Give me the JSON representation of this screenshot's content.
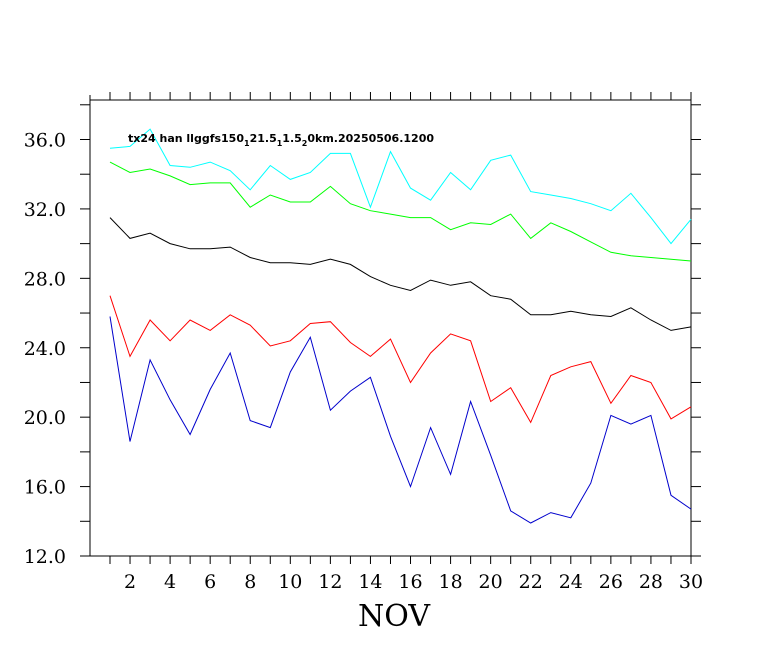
{
  "chart_data": {
    "type": "line",
    "title": {
      "parts": [
        {
          "text": "tx24 han llggfs150",
          "sub": false
        },
        {
          "text": "1",
          "sub": true
        },
        {
          "text": "21.5",
          "sub": false
        },
        {
          "text": "1",
          "sub": true
        },
        {
          "text": "1.5",
          "sub": false
        },
        {
          "text": "2",
          "sub": true
        },
        {
          "text": "0km.20250506.1200",
          "sub": false
        }
      ]
    },
    "xlabel": "NOV",
    "ylabel": "",
    "xlim": [
      0,
      30
    ],
    "ylim": [
      12,
      38
    ],
    "x_ticks": [
      2,
      4,
      6,
      8,
      10,
      12,
      14,
      16,
      18,
      20,
      22,
      24,
      26,
      28,
      30
    ],
    "x_tick_labels": [
      "2",
      "4",
      "6",
      "8",
      "10",
      "12",
      "14",
      "16",
      "18",
      "20",
      "22",
      "24",
      "26",
      "28",
      "30"
    ],
    "y_ticks": [
      12,
      16,
      20,
      24,
      28,
      32,
      36
    ],
    "y_tick_labels": [
      "12.0",
      "16.0",
      "20.0",
      "24.0",
      "28.0",
      "32.0",
      "36.0"
    ],
    "grid": false,
    "x": [
      1,
      2,
      3,
      4,
      5,
      6,
      7,
      8,
      9,
      10,
      11,
      12,
      13,
      14,
      15,
      16,
      17,
      18,
      19,
      20,
      21,
      22,
      23,
      24,
      25,
      26,
      27,
      28,
      29,
      30
    ],
    "series": [
      {
        "color": "#00ffff",
        "values": [
          35.5,
          35.6,
          36.6,
          34.5,
          34.4,
          34.7,
          34.2,
          33.1,
          34.5,
          33.7,
          34.1,
          35.2,
          35.2,
          32.1,
          35.3,
          33.2,
          32.5,
          34.1,
          33.1,
          34.8,
          35.1,
          33.0,
          32.8,
          32.6,
          32.3,
          31.9,
          32.9,
          31.5,
          30.0,
          31.4
        ]
      },
      {
        "color": "#00ff00",
        "values": [
          34.7,
          34.1,
          34.3,
          33.9,
          33.4,
          33.5,
          33.5,
          32.1,
          32.8,
          32.4,
          32.4,
          33.3,
          32.3,
          31.9,
          31.7,
          31.5,
          31.5,
          30.8,
          31.2,
          31.1,
          31.7,
          30.3,
          31.2,
          30.7,
          30.1,
          29.5,
          29.3,
          29.2,
          29.1,
          29.0
        ]
      },
      {
        "color": "#000000",
        "values": [
          31.5,
          30.3,
          30.6,
          30.0,
          29.7,
          29.7,
          29.8,
          29.2,
          28.9,
          28.9,
          28.8,
          29.1,
          28.8,
          28.1,
          27.6,
          27.3,
          27.9,
          27.6,
          27.8,
          27.0,
          26.8,
          25.9,
          25.9,
          26.1,
          25.9,
          25.8,
          26.3,
          25.6,
          25.0,
          25.2
        ]
      },
      {
        "color": "#ff0000",
        "values": [
          27.0,
          23.5,
          25.6,
          24.4,
          25.6,
          25.0,
          25.9,
          25.3,
          24.1,
          24.4,
          25.4,
          25.5,
          24.3,
          23.5,
          24.5,
          22.0,
          23.7,
          24.8,
          24.4,
          20.9,
          21.7,
          19.7,
          22.4,
          22.9,
          23.2,
          20.8,
          22.4,
          22.0,
          19.9,
          20.6
        ]
      },
      {
        "color": "#0000cc",
        "values": [
          25.8,
          18.6,
          23.3,
          21.0,
          19.0,
          21.6,
          23.7,
          19.8,
          19.4,
          22.6,
          24.6,
          20.4,
          21.5,
          22.3,
          18.9,
          16.0,
          19.4,
          16.7,
          20.9,
          17.8,
          14.6,
          13.9,
          14.5,
          14.2,
          16.2,
          20.1,
          19.6,
          20.1,
          15.5,
          14.7
        ]
      }
    ]
  }
}
